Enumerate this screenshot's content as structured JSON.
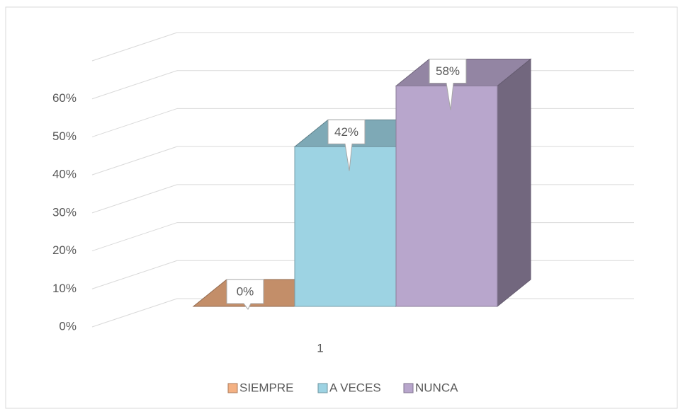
{
  "chart_data": {
    "type": "bar3d",
    "categories": [
      "1"
    ],
    "series": [
      {
        "name": "SIEMPRE",
        "color": "#f4b183",
        "values": [
          0
        ],
        "value_labels": [
          "0%"
        ]
      },
      {
        "name": "A VECES",
        "color": "#9dd3e3",
        "values": [
          42
        ],
        "value_labels": [
          "42%"
        ]
      },
      {
        "name": "NUNCA",
        "color": "#b8a6cc",
        "values": [
          58
        ],
        "value_labels": [
          "58%"
        ]
      }
    ],
    "ylim": [
      0,
      70
    ],
    "yticks": [
      {
        "value": 0,
        "label": "0%"
      },
      {
        "value": 10,
        "label": "10%"
      },
      {
        "value": 20,
        "label": "20%"
      },
      {
        "value": 30,
        "label": "30%"
      },
      {
        "value": 40,
        "label": "40%"
      },
      {
        "value": 50,
        "label": "50%"
      },
      {
        "value": 60,
        "label": "60%"
      }
    ],
    "grid": true,
    "legend": "bottom"
  }
}
